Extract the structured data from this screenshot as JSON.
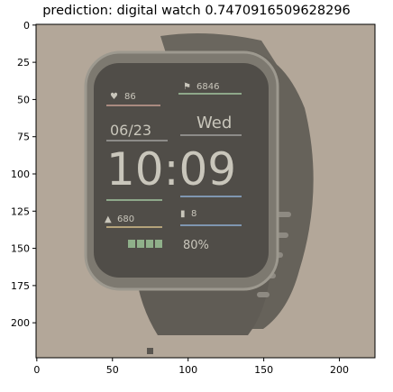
{
  "chart_data": {
    "type": "image",
    "title": "prediction: digital watch 0.7470916509628296",
    "xlabel": "",
    "ylabel": "",
    "xlim": [
      -0.5,
      223.5
    ],
    "ylim": [
      223.5,
      -0.5
    ],
    "xticks": [
      0,
      50,
      100,
      150,
      200
    ],
    "yticks": [
      0,
      25,
      50,
      75,
      100,
      125,
      150,
      175,
      200
    ],
    "grid": false,
    "background_color": "#b3a799",
    "image_content": {
      "subject": "digital watch",
      "screen_texts": [
        "86",
        "6846",
        "06/23",
        "Wed",
        "10:09",
        "680",
        "8",
        "80%"
      ]
    }
  }
}
